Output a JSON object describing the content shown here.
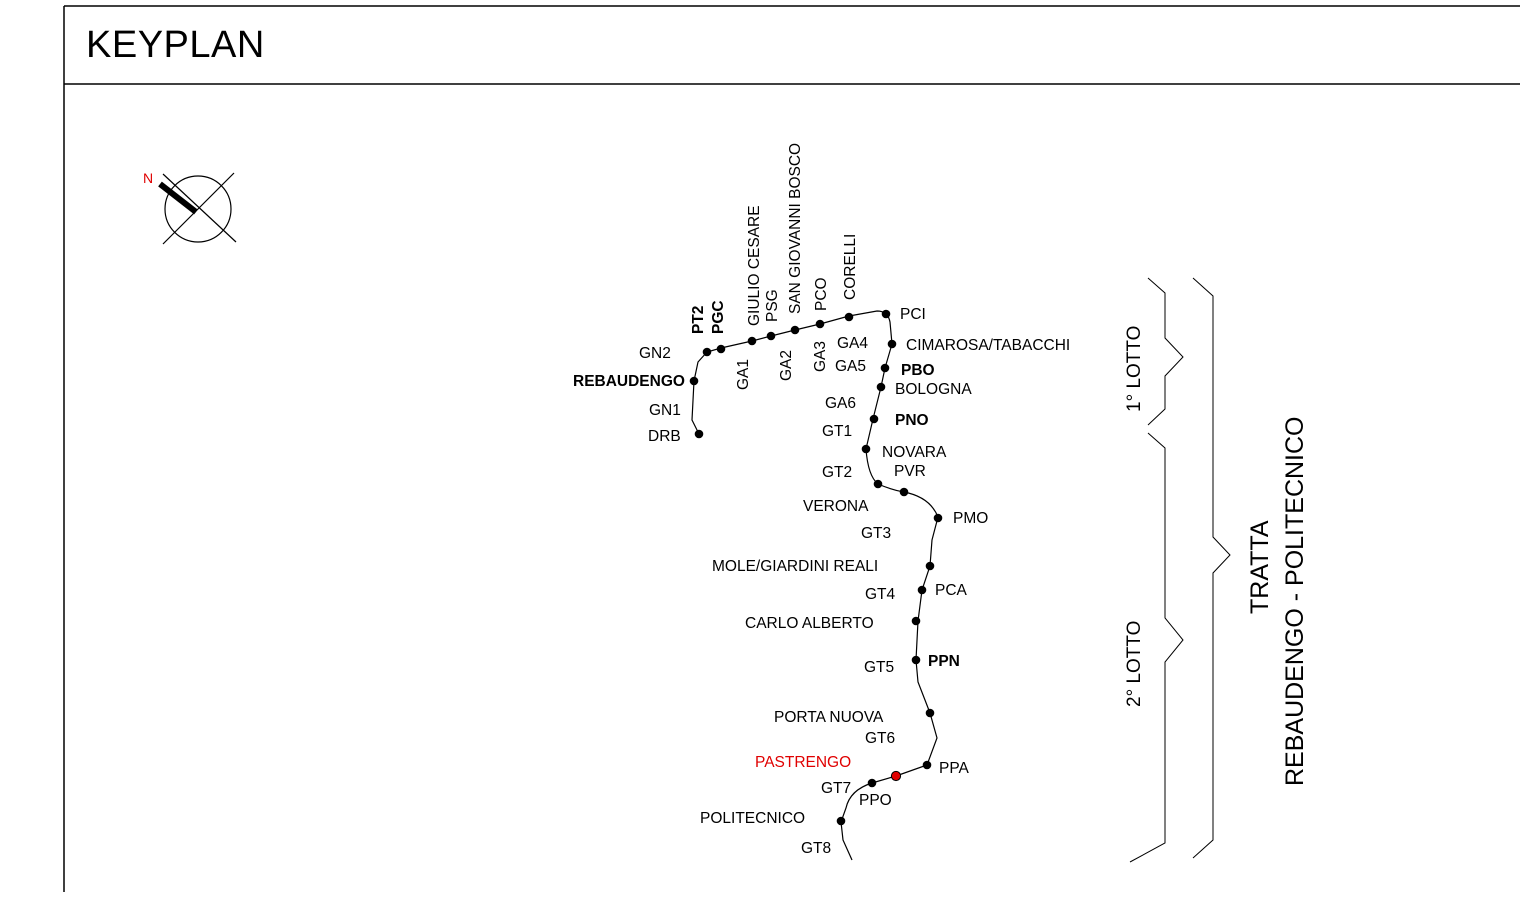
{
  "header": {
    "title": "KEYPLAN"
  },
  "compass": {
    "north_label": "N",
    "north_color": "#e00000",
    "icon": "north-arrow-icon"
  },
  "stations": {
    "pt2": "PT2",
    "pgc": "PGC",
    "giulio_cesare": "GIULIO CESARE",
    "psg": "PSG",
    "san_giovanni_bosco": "SAN GIOVANNI BOSCO",
    "pco": "PCO",
    "corelli": "CORELLI",
    "ga1": "GA1",
    "ga2": "GA2",
    "ga3": "GA3",
    "pci": "PCI",
    "gn2": "GN2",
    "ga4": "GA4",
    "cimarosa": "CIMAROSA/TABACCHI",
    "ga5": "GA5",
    "pbo": "PBO",
    "rebaudengo": "REBAUDENGO",
    "bologna": "BOLOGNA",
    "gn1": "GN1",
    "ga6": "GA6",
    "pno": "PNO",
    "drb": "DRB",
    "gt1": "GT1",
    "novara": "NOVARA",
    "gt2": "GT2",
    "pvr": "PVR",
    "verona": "VERONA",
    "pmo": "PMO",
    "gt3": "GT3",
    "mole": "MOLE/GIARDINI REALI",
    "gt4": "GT4",
    "pca": "PCA",
    "carlo_alberto": "CARLO ALBERTO",
    "gt5": "GT5",
    "ppn": "PPN",
    "porta_nuova": "PORTA NUOVA",
    "gt6": "GT6",
    "pastrengo": "PASTRENGO",
    "ppa": "PPA",
    "gt7": "GT7",
    "ppo": "PPO",
    "politecnico": "POLITECNICO",
    "gt8": "GT8"
  },
  "highlight_color": "#e00000",
  "lots": {
    "lot1": "1° LOTTO",
    "lot2": "2° LOTTO"
  },
  "section": {
    "line1": "TRATTA",
    "line2": "REBAUDENGO - POLITECNICO"
  }
}
